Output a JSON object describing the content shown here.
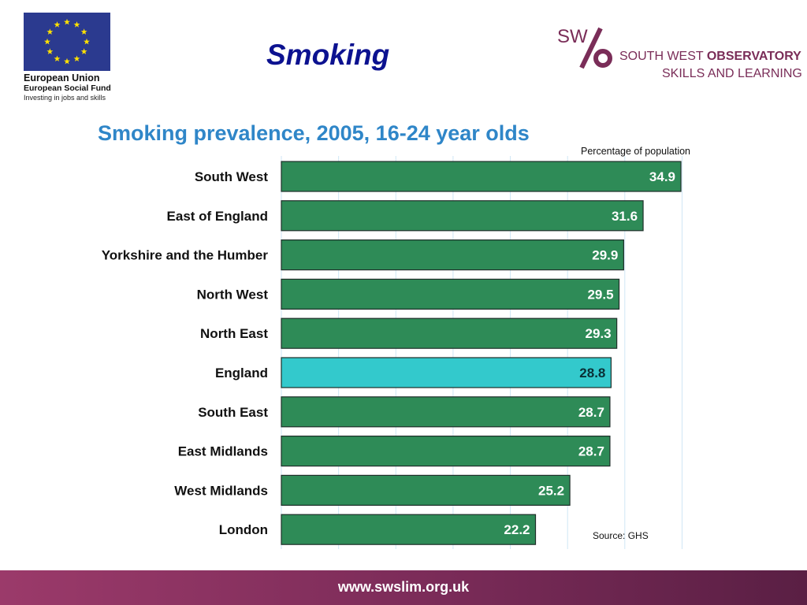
{
  "header": {
    "title": "Smoking",
    "eu_logo": {
      "title": "European Union",
      "subtitle": "European Social Fund",
      "tagline": "Investing in jobs and skills",
      "flag_color": "#2b3a8f",
      "star_color": "#ffe100"
    },
    "swo_logo": {
      "mark": "SW",
      "line1_regular": "SOUTH WEST ",
      "line1_bold": "OBSERVATORY",
      "line2": "SKILLS AND LEARNING",
      "color": "#7a2d58"
    }
  },
  "chart_data": {
    "type": "bar",
    "orientation": "horizontal",
    "title": "Smoking prevalence, 2005, 16-24 year olds",
    "unit_label": "Percentage of population",
    "source": "Source: GHS",
    "categories": [
      "South West",
      "East of England",
      "Yorkshire and the Humber",
      "North West",
      "North East",
      "England",
      "South East",
      "East Midlands",
      "West Midlands",
      "London"
    ],
    "values": [
      34.9,
      31.6,
      29.9,
      29.5,
      29.3,
      28.8,
      28.7,
      28.7,
      25.2,
      22.2
    ],
    "value_labels": [
      "34.9",
      "31.6",
      "29.9",
      "29.5",
      "29.3",
      "28.8",
      "28.7",
      "28.7",
      "25.2",
      "22.2"
    ],
    "highlight": "England",
    "xlim": [
      0,
      35
    ],
    "gridlines": true,
    "colors": {
      "bar": "#2e8b57",
      "highlight": "#33c9cc",
      "title": "#2f86c8",
      "grid": "#cfe6f5"
    }
  },
  "footer": {
    "url": "www.swslim.org.uk"
  }
}
